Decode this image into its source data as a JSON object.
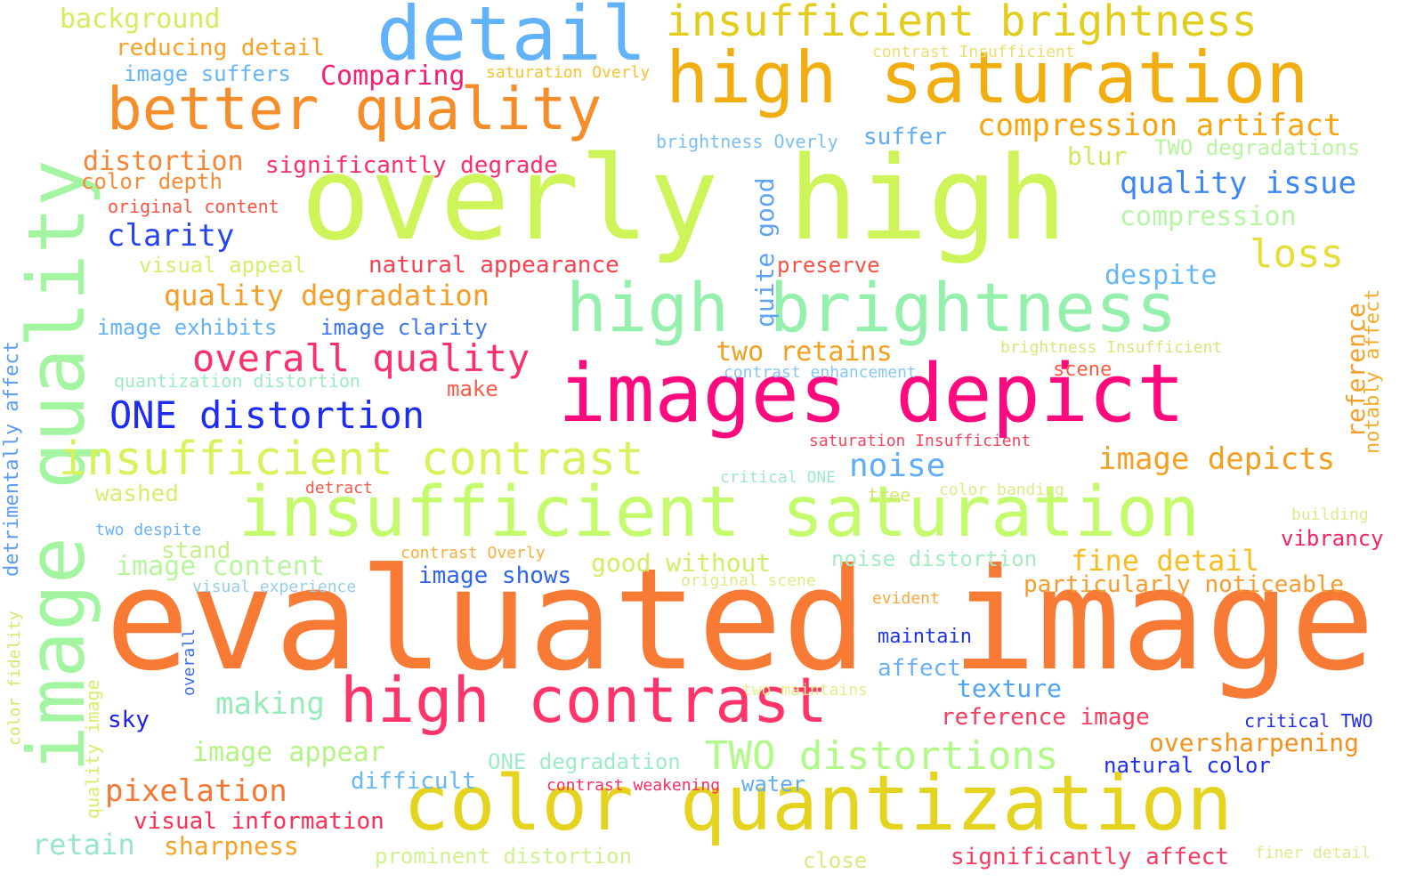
{
  "words": [
    {
      "text": "evaluated image",
      "color": "#F77A35"
    },
    {
      "text": "overly high",
      "color": "#CDF55A"
    },
    {
      "text": "images depict",
      "color": "#FF0A7E"
    },
    {
      "text": "color quantization",
      "color": "#E5D41F"
    },
    {
      "text": "insufficient saturation",
      "color": "#C3FB6C"
    },
    {
      "text": "high contrast",
      "color": "#FE346A"
    },
    {
      "text": "image quality",
      "color": "#A4F5A1"
    },
    {
      "text": "detail",
      "color": "#61B2F8"
    },
    {
      "text": "high saturation",
      "color": "#F2AE10"
    },
    {
      "text": "high brightness",
      "color": "#95F0AE"
    },
    {
      "text": "better quality",
      "color": "#F58E2A"
    },
    {
      "text": "insufficient brightness",
      "color": "#E3CD1C"
    },
    {
      "text": "insufficient contrast",
      "color": "#D6F35C"
    },
    {
      "text": "ONE distortion",
      "color": "#1D2CF3"
    },
    {
      "text": "overall quality",
      "color": "#FD2F6A"
    },
    {
      "text": "TWO distortions",
      "color": "#B1FA89"
    },
    {
      "text": "image depicts",
      "color": "#F39F21"
    },
    {
      "text": "quality degradation",
      "color": "#F59E27"
    },
    {
      "text": "compression artifact",
      "color": "#F6A50F"
    },
    {
      "text": "quality issue",
      "color": "#3E86F3"
    },
    {
      "text": "loss",
      "color": "#E5DE36"
    },
    {
      "text": "noise",
      "color": "#60AEF7"
    },
    {
      "text": "fine detail",
      "color": "#F8BC20"
    },
    {
      "text": "particularly noticeable",
      "color": "#F49C2E"
    },
    {
      "text": "oversharpening",
      "color": "#F5921E"
    },
    {
      "text": "reference image",
      "color": "#F73C5D"
    },
    {
      "text": "texture",
      "color": "#4FA5F2"
    },
    {
      "text": "natural color",
      "color": "#1F31EC"
    },
    {
      "text": "significantly affect",
      "color": "#F93B62"
    },
    {
      "text": "distortion",
      "color": "#F68636"
    },
    {
      "text": "significantly degrade",
      "color": "#FC2E6B"
    },
    {
      "text": "clarity",
      "color": "#2743F0"
    },
    {
      "text": "natural appearance",
      "color": "#FB3F4F"
    },
    {
      "text": "pixelation",
      "color": "#F47734"
    },
    {
      "text": "retain",
      "color": "#95E6C6"
    },
    {
      "text": "sharpness",
      "color": "#F7A126"
    },
    {
      "text": "making",
      "color": "#97EBB8"
    },
    {
      "text": "image appear",
      "color": "#B4F487"
    },
    {
      "text": "image content",
      "color": "#B8F59C"
    },
    {
      "text": "compression",
      "color": "#B5F6A5"
    },
    {
      "text": "despite",
      "color": "#67B8F2"
    },
    {
      "text": "two retains",
      "color": "#F59F1E"
    },
    {
      "text": "reducing detail",
      "color": "#F6A226"
    },
    {
      "text": "background",
      "color": "#D5EC5F"
    },
    {
      "text": "image suffers",
      "color": "#65B4F4"
    },
    {
      "text": "Comparing",
      "color": "#F71E73"
    },
    {
      "text": "suffer",
      "color": "#5FACF5"
    },
    {
      "text": "blur",
      "color": "#D4E75E"
    },
    {
      "text": "TWO degradations",
      "color": "#B8F59F"
    },
    {
      "text": "color depth",
      "color": "#F68C38"
    },
    {
      "text": "original content",
      "color": "#FB5344"
    },
    {
      "text": "visual appeal",
      "color": "#D1F06E"
    },
    {
      "text": "preserve",
      "color": "#FB4F46"
    },
    {
      "text": "image exhibits",
      "color": "#64B2F4"
    },
    {
      "text": "image clarity",
      "color": "#3E76EF"
    },
    {
      "text": "quantization distortion",
      "color": "#9FEBC1"
    },
    {
      "text": "make",
      "color": "#FB5A4A"
    },
    {
      "text": "scene",
      "color": "#FB5E44"
    },
    {
      "text": "good without",
      "color": "#CDF065"
    },
    {
      "text": "noise distortion",
      "color": "#A5ECC0"
    },
    {
      "text": "image shows",
      "color": "#2F63EE"
    },
    {
      "text": "stand",
      "color": "#C6F08A"
    },
    {
      "text": "ONE degradation",
      "color": "#9FEBC5"
    },
    {
      "text": "difficult",
      "color": "#6BB7F0"
    },
    {
      "text": "water",
      "color": "#60AEF2"
    },
    {
      "text": "visual information",
      "color": "#F93056"
    },
    {
      "text": "prominent distortion",
      "color": "#CFF28F"
    },
    {
      "text": "close",
      "color": "#D8EA81"
    },
    {
      "text": "washed",
      "color": "#D4F06F"
    },
    {
      "text": "affect",
      "color": "#6BB0F4"
    },
    {
      "text": "maintain",
      "color": "#1F35E8"
    },
    {
      "text": "sky",
      "color": "#1F23E6"
    },
    {
      "text": "vibrancy",
      "color": "#F72266"
    },
    {
      "text": "critical TWO",
      "color": "#1F2BEA"
    },
    {
      "text": "contrast Insufficient",
      "color": "#E9E073"
    },
    {
      "text": "saturation Overly",
      "color": "#F7C232"
    },
    {
      "text": "brightness Overly",
      "color": "#7CBFF3"
    },
    {
      "text": "brightness Insufficient",
      "color": "#DAE57A"
    },
    {
      "text": "contrast enhancement",
      "color": "#86C8F1"
    },
    {
      "text": "saturation Insufficient",
      "color": "#F7455E"
    },
    {
      "text": "critical ONE",
      "color": "#9FE9CC"
    },
    {
      "text": "detract",
      "color": "#FB5746"
    },
    {
      "text": "tree",
      "color": "#D4E673"
    },
    {
      "text": "color banding",
      "color": "#DCEC8A"
    },
    {
      "text": "building",
      "color": "#D9EC8C"
    },
    {
      "text": "two despite",
      "color": "#6BB1F3"
    },
    {
      "text": "contrast Overly",
      "color": "#F8AF3B"
    },
    {
      "text": "visual experience",
      "color": "#96CDEB"
    },
    {
      "text": "original scene",
      "color": "#DDEC86"
    },
    {
      "text": "evident",
      "color": "#F8A93B"
    },
    {
      "text": "two maintains",
      "color": "#E4EE8A"
    },
    {
      "text": "contrast weakening",
      "color": "#FB2E62"
    },
    {
      "text": "finer detail",
      "color": "#E2E891"
    },
    {
      "text": "quite good",
      "color": "#5FA3F3"
    },
    {
      "text": "reference",
      "color": "#F5A02A"
    },
    {
      "text": "notably affect",
      "color": "#F6AB2A"
    },
    {
      "text": "detrimentally affect",
      "color": "#5B9CF2"
    },
    {
      "text": "color fidelity",
      "color": "#D4E76A"
    },
    {
      "text": "quality image",
      "color": "#D6EF6A"
    },
    {
      "text": "overall",
      "color": "#3F6EEC"
    }
  ]
}
